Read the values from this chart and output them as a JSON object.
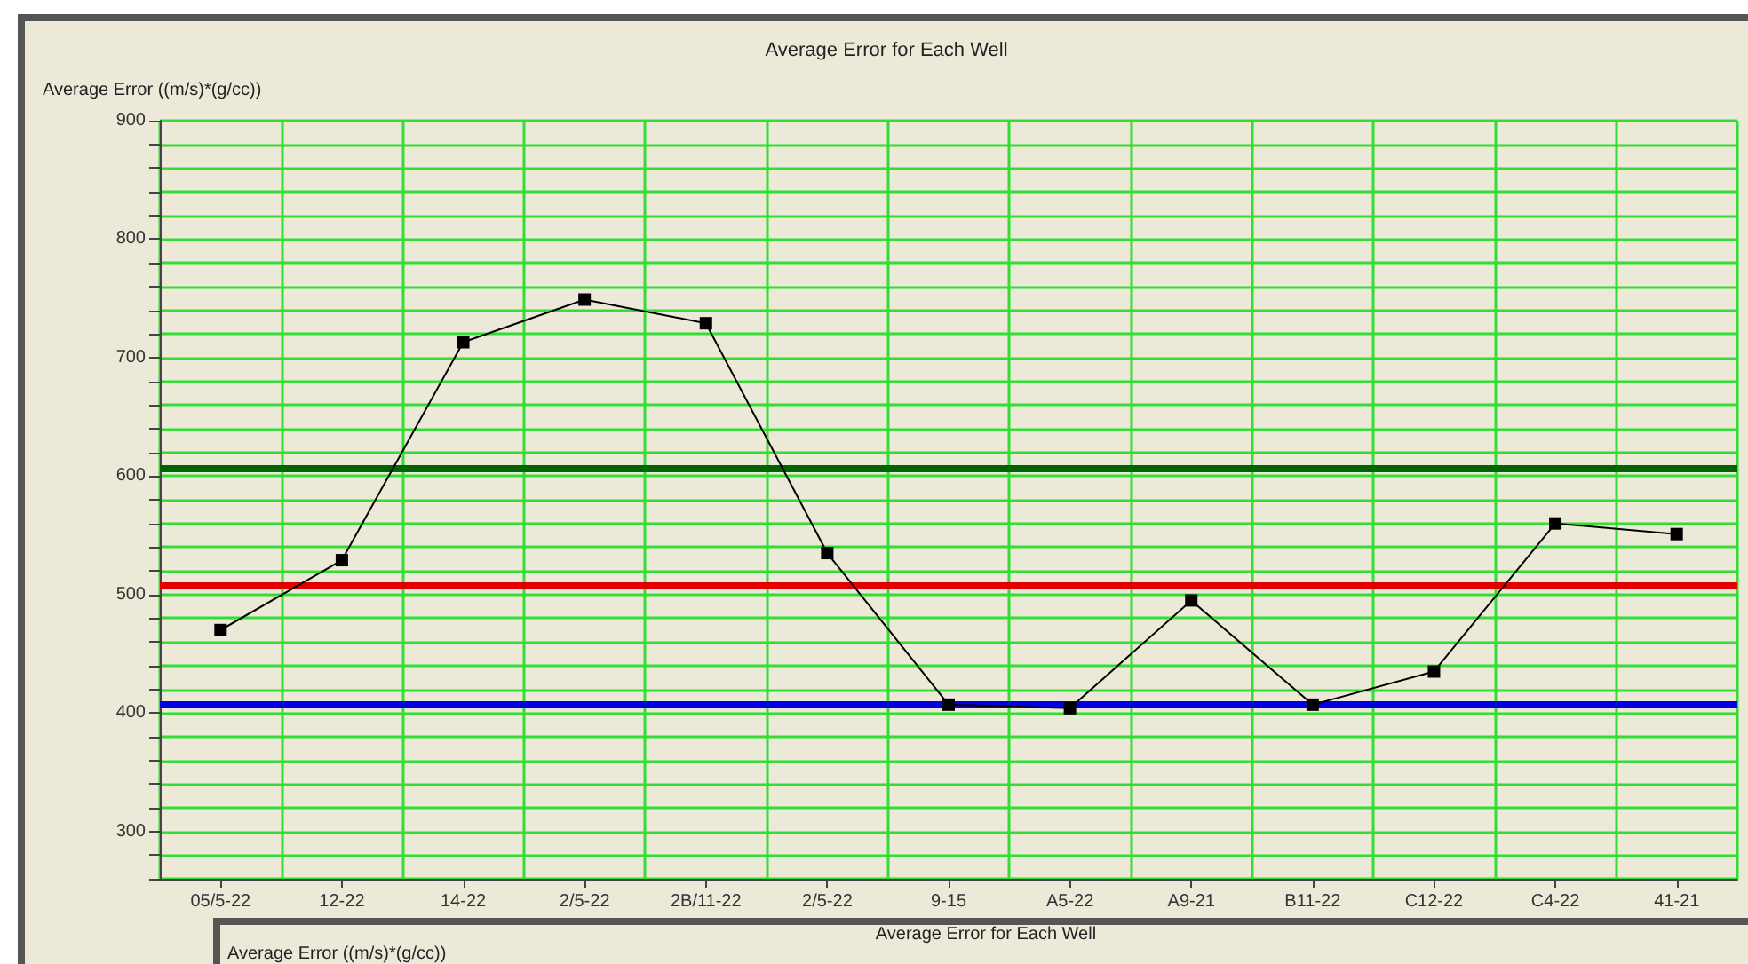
{
  "chart_data": [
    {
      "type": "line",
      "title": "Average Error for Each Well",
      "ylabel": "Average Error ((m/s)*(g/cc))",
      "categories": [
        "05/5-22",
        "12-22",
        "14-22",
        "2/5-22",
        "2B/11-22",
        "2/5-22",
        "9-15",
        "A5-22",
        "A9-21",
        "B11-22",
        "C12-22",
        "C4-22",
        "41-21"
      ],
      "series": [
        {
          "color": "#000000",
          "values": [
            470,
            529,
            713,
            749,
            729,
            535,
            407,
            404,
            495,
            407,
            435,
            560,
            551
          ]
        }
      ],
      "ylim": [
        260,
        900
      ],
      "yticks": [
        {
          "value": 260,
          "label": null
        },
        {
          "value": 280,
          "label": null
        },
        300,
        {
          "value": 320,
          "label": null
        },
        {
          "value": 340,
          "label": null
        },
        {
          "value": 360,
          "label": null
        },
        {
          "value": 380,
          "label": null
        },
        400,
        {
          "value": 420,
          "label": null
        },
        {
          "value": 440,
          "label": null
        },
        {
          "value": 460,
          "label": null
        },
        {
          "value": 480,
          "label": null
        },
        500,
        {
          "value": 520,
          "label": null
        },
        {
          "value": 540,
          "label": null
        },
        {
          "value": 560,
          "label": null
        },
        {
          "value": 580,
          "label": null
        },
        600,
        {
          "value": 620,
          "label": null
        },
        {
          "value": 640,
          "label": null
        },
        {
          "value": 660,
          "label": null
        },
        {
          "value": 680,
          "label": null
        },
        700,
        {
          "value": 720,
          "label": null
        },
        {
          "value": 740,
          "label": null
        },
        {
          "value": 760,
          "label": null
        },
        {
          "value": 780,
          "label": null
        },
        800,
        {
          "value": 820,
          "label": null
        },
        {
          "value": 840,
          "label": null
        },
        {
          "value": 860,
          "label": null
        },
        {
          "value": 880,
          "label": null
        },
        900
      ],
      "ref_lines": [
        {
          "axis": "y",
          "value": 606,
          "color": "#006400"
        },
        {
          "axis": "y",
          "value": 507,
          "color": "#e00000"
        },
        {
          "axis": "y",
          "value": 408,
          "color": "#0000e0"
        }
      ],
      "grid": true,
      "marker": "square",
      "line_style": "solid"
    },
    {
      "type": "other",
      "title": "Average Error for Each Well",
      "ylabel": "Average Error ((m/s)*(g/cc))"
    }
  ]
}
